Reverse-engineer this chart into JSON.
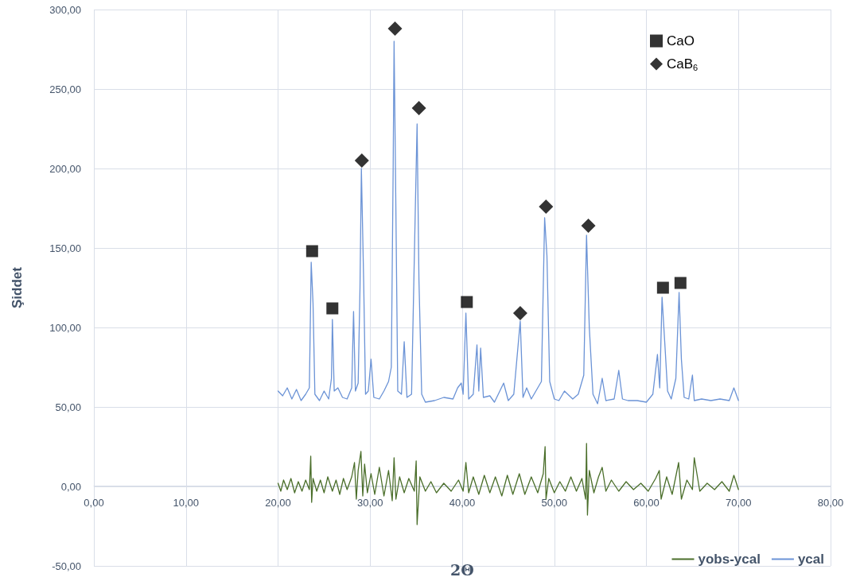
{
  "chart_data": {
    "type": "line",
    "xlabel": "2Θ",
    "ylabel": "Şiddet",
    "xlim": [
      0,
      80
    ],
    "xticks": [
      {
        "value": 0,
        "label": "0,00"
      },
      {
        "value": 10,
        "label": "10,00"
      },
      {
        "value": 20,
        "label": "20,00"
      },
      {
        "value": 30,
        "label": "30,00"
      },
      {
        "value": 40,
        "label": "40,00"
      },
      {
        "value": 50,
        "label": "50,00"
      },
      {
        "value": 60,
        "label": "60,00"
      },
      {
        "value": 70,
        "label": "70,00"
      },
      {
        "value": 80,
        "label": "80,00"
      }
    ],
    "ylim": [
      -50,
      300
    ],
    "yticks": [
      {
        "value": -50,
        "label": "-50,00"
      },
      {
        "value": 0,
        "label": "0,00"
      },
      {
        "value": 50,
        "label": "50,00"
      },
      {
        "value": 100,
        "label": "100,00"
      },
      {
        "value": 150,
        "label": "150,00"
      },
      {
        "value": 200,
        "label": "200,00"
      },
      {
        "value": 250,
        "label": "250,00"
      },
      {
        "value": 300,
        "label": "300,00"
      }
    ],
    "grid": true,
    "legend": "bottom right",
    "line_style": "solid",
    "marker": "none",
    "series": [
      {
        "name": "yobs-ycal",
        "color": "#4a6e2a",
        "x": [
          20,
          20.3,
          20.6,
          21,
          21.4,
          21.8,
          22.2,
          22.6,
          23,
          23.4,
          23.55,
          23.65,
          23.8,
          24.2,
          24.6,
          25,
          25.4,
          25.9,
          26.3,
          26.7,
          27.1,
          27.5,
          28,
          28.3,
          28.5,
          28.7,
          29,
          29.2,
          29.4,
          29.7,
          30.1,
          30.5,
          31,
          31.5,
          32,
          32.4,
          32.6,
          32.8,
          33.2,
          33.7,
          34.2,
          34.8,
          35,
          35.1,
          35.4,
          36,
          36.6,
          37.2,
          38,
          38.8,
          39.6,
          40.1,
          40.4,
          40.7,
          41.2,
          41.8,
          42.4,
          43,
          43.6,
          44.3,
          44.9,
          45.5,
          46.2,
          46.8,
          47.5,
          48.2,
          48.8,
          49,
          49.1,
          49.4,
          50,
          50.6,
          51.2,
          51.8,
          52.4,
          53,
          53.4,
          53.5,
          53.6,
          53.8,
          54.3,
          54.8,
          55.2,
          55.6,
          56.2,
          57,
          57.8,
          58.6,
          59.4,
          60.2,
          61,
          61.4,
          61.6,
          62.2,
          62.8,
          63.5,
          63.8,
          64.4,
          65,
          65.2,
          65.8,
          66.6,
          67.4,
          68.2,
          69,
          69.5,
          70
        ],
        "values": [
          2,
          -3,
          4,
          -2,
          5,
          -4,
          3,
          -3,
          4,
          -2,
          19,
          -10,
          5,
          -3,
          4,
          -4,
          6,
          -3,
          4,
          -5,
          5,
          -2,
          6,
          15,
          -8,
          10,
          22,
          -6,
          14,
          -4,
          8,
          -5,
          12,
          -6,
          10,
          -9,
          18,
          -8,
          6,
          -4,
          5,
          -3,
          16,
          -24,
          6,
          -3,
          3,
          -4,
          2,
          -3,
          4,
          -3,
          15,
          -4,
          6,
          -5,
          7,
          -4,
          6,
          -6,
          7,
          -5,
          8,
          -5,
          6,
          -4,
          8,
          25,
          -8,
          5,
          -4,
          3,
          -3,
          6,
          -3,
          5,
          -8,
          27,
          -18,
          10,
          -4,
          6,
          12,
          -3,
          4,
          -3,
          3,
          -2,
          2,
          -3,
          5,
          10,
          -8,
          6,
          -5,
          15,
          -8,
          4,
          -2,
          18,
          -3,
          2,
          -2,
          3,
          -3,
          7,
          -2
        ]
      },
      {
        "name": "ycal",
        "color": "#6b93d6",
        "x": [
          20,
          20.5,
          21,
          21.5,
          22,
          22.5,
          23,
          23.4,
          23.6,
          23.8,
          24,
          24.5,
          25,
          25.5,
          25.8,
          25.9,
          26.1,
          26.5,
          27,
          27.5,
          28,
          28.2,
          28.4,
          28.7,
          28.9,
          29.05,
          29.3,
          29.5,
          29.8,
          30.1,
          30.4,
          31,
          31.5,
          32,
          32.3,
          32.5,
          32.6,
          32.75,
          33,
          33.4,
          33.7,
          34,
          34.5,
          34.9,
          35.1,
          35.3,
          35.6,
          36,
          37,
          38,
          39,
          39.5,
          39.9,
          40.1,
          40.4,
          40.7,
          41.2,
          41.6,
          41.8,
          42,
          42.3,
          43,
          43.5,
          44.5,
          45,
          45.6,
          46.3,
          46.6,
          47,
          47.5,
          48,
          48.6,
          48.95,
          49.2,
          49.5,
          50,
          50.5,
          51.1,
          52,
          52.6,
          53.2,
          53.5,
          53.8,
          54.2,
          54.7,
          55.2,
          55.6,
          56.5,
          57,
          57.4,
          58,
          59,
          60,
          60.7,
          61.2,
          61.45,
          61.7,
          62,
          62.3,
          62.7,
          63.2,
          63.55,
          63.8,
          64.1,
          64.6,
          65,
          65.2,
          66,
          67,
          68,
          69,
          69.5,
          70
        ],
        "values": [
          60,
          57,
          62,
          55,
          61,
          54,
          58,
          62,
          141,
          115,
          58,
          54,
          60,
          55,
          68,
          105,
          60,
          62,
          56,
          55,
          62,
          110,
          60,
          65,
          125,
          200,
          128,
          58,
          60,
          80,
          56,
          55,
          60,
          66,
          75,
          200,
          280,
          200,
          60,
          58,
          91,
          56,
          58,
          173,
          228,
          130,
          58,
          53,
          54,
          56,
          55,
          62,
          65,
          58,
          109,
          55,
          58,
          89,
          60,
          87,
          56,
          57,
          53,
          65,
          54,
          58,
          104,
          56,
          62,
          55,
          60,
          66,
          169,
          145,
          66,
          55,
          54,
          60,
          55,
          58,
          70,
          158,
          100,
          58,
          52,
          68,
          54,
          55,
          73,
          55,
          54,
          54,
          53,
          58,
          83,
          62,
          119,
          90,
          60,
          55,
          68,
          122,
          80,
          56,
          55,
          70,
          54,
          55,
          54,
          55,
          54,
          62,
          54
        ]
      },
      {
        "name": "CaO",
        "type": "scatter",
        "marker": "square",
        "color": "#000000",
        "x": [
          23.7,
          25.9,
          40.5,
          61.8,
          63.7
        ],
        "values": [
          148,
          112,
          116,
          125,
          128
        ]
      },
      {
        "name": "CaB$_{6}$",
        "type": "scatter",
        "marker": "diamond",
        "color": "#000000",
        "x": [
          29.1,
          32.7,
          35.3,
          46.3,
          49.1,
          53.7
        ],
        "values": [
          205,
          288,
          238,
          109,
          176,
          164
        ]
      }
    ]
  }
}
